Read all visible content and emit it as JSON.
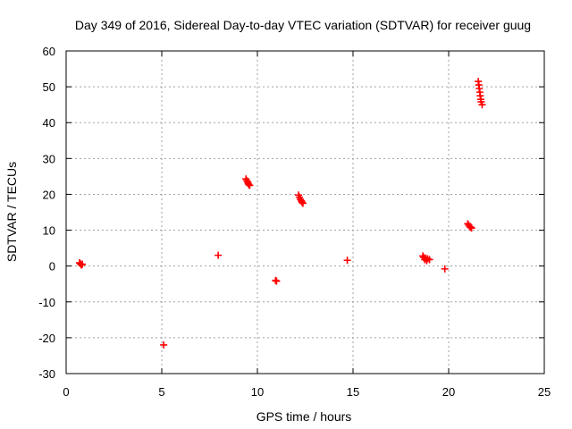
{
  "chart_data": {
    "type": "scatter",
    "title": "Day 349 of 2016, Sidereal Day-to-day VTEC variation (SDTVAR) for receiver guug",
    "xlabel": "GPS time / hours",
    "ylabel": "SDTVAR / TECUs",
    "xlim": [
      0,
      25
    ],
    "ylim": [
      -30,
      60
    ],
    "xticks": [
      "0",
      "5",
      "10",
      "15",
      "20",
      "25"
    ],
    "yticks": [
      "-30",
      "-20",
      "-10",
      "0",
      "10",
      "20",
      "30",
      "40",
      "50",
      "60"
    ],
    "grid": true,
    "marker": "+",
    "marker_color": "#ff0000",
    "points": [
      [
        0.7,
        0.9
      ],
      [
        0.75,
        0.6
      ],
      [
        0.8,
        0.3
      ],
      [
        0.85,
        0.5
      ],
      [
        5.1,
        -22.0
      ],
      [
        7.95,
        3.0
      ],
      [
        9.4,
        24.3
      ],
      [
        9.45,
        23.8
      ],
      [
        9.5,
        23.4
      ],
      [
        9.52,
        23.0
      ],
      [
        9.55,
        22.7
      ],
      [
        9.6,
        22.5
      ],
      [
        10.95,
        -4.0
      ],
      [
        11.0,
        -4.2
      ],
      [
        12.15,
        19.8
      ],
      [
        12.2,
        19.2
      ],
      [
        12.25,
        18.6
      ],
      [
        12.3,
        18.2
      ],
      [
        12.33,
        17.8
      ],
      [
        12.38,
        17.5
      ],
      [
        14.7,
        1.6
      ],
      [
        18.65,
        2.8
      ],
      [
        18.7,
        2.4
      ],
      [
        18.75,
        1.8
      ],
      [
        18.8,
        2.2
      ],
      [
        18.85,
        1.5
      ],
      [
        18.9,
        2.0
      ],
      [
        19.0,
        1.8
      ],
      [
        19.8,
        -0.8
      ],
      [
        21.0,
        11.8
      ],
      [
        21.05,
        11.4
      ],
      [
        21.1,
        11.0
      ],
      [
        21.15,
        10.8
      ],
      [
        21.2,
        10.6
      ],
      [
        21.55,
        51.5
      ],
      [
        21.58,
        50.5
      ],
      [
        21.6,
        49.5
      ],
      [
        21.63,
        48.5
      ],
      [
        21.65,
        47.5
      ],
      [
        21.68,
        46.5
      ],
      [
        21.7,
        45.8
      ],
      [
        21.75,
        45.0
      ]
    ]
  }
}
